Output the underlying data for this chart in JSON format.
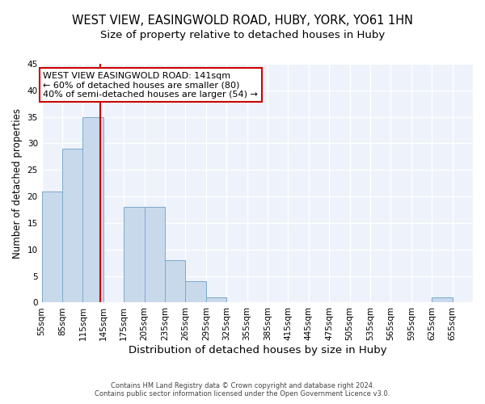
{
  "title1": "WEST VIEW, EASINGWOLD ROAD, HUBY, YORK, YO61 1HN",
  "title2": "Size of property relative to detached houses in Huby",
  "xlabel": "Distribution of detached houses by size in Huby",
  "ylabel": "Number of detached properties",
  "bar_color": "#c9d9ec",
  "bar_edge_color": "#7aaacb",
  "bin_starts": [
    55,
    85,
    115,
    145,
    175,
    205,
    235,
    265,
    295,
    325,
    355,
    385,
    415,
    445,
    475,
    505,
    535,
    565,
    595,
    625,
    655
  ],
  "bin_width": 30,
  "values": [
    21,
    29,
    35,
    0,
    18,
    18,
    8,
    4,
    1,
    0,
    0,
    0,
    0,
    0,
    0,
    0,
    0,
    0,
    0,
    1,
    0
  ],
  "property_size": 141,
  "vline_color": "#cc0000",
  "annotation_line1": "WEST VIEW EASINGWOLD ROAD: 141sqm",
  "annotation_line2": "← 60% of detached houses are smaller (80)",
  "annotation_line3": "40% of semi-detached houses are larger (54) →",
  "annotation_box_color": "white",
  "annotation_box_edge": "#cc0000",
  "footer1": "Contains HM Land Registry data © Crown copyright and database right 2024.",
  "footer2": "Contains public sector information licensed under the Open Government Licence v3.0.",
  "ylim": [
    0,
    45
  ],
  "yticks": [
    0,
    5,
    10,
    15,
    20,
    25,
    30,
    35,
    40,
    45
  ],
  "bg_color": "#eef2fa",
  "grid_color": "white",
  "title1_fontsize": 10.5,
  "title2_fontsize": 9.5,
  "tick_labelsize": 7.5,
  "ylabel_fontsize": 8.5,
  "xlabel_fontsize": 9.5,
  "annotation_fontsize": 8.0,
  "footer_fontsize": 6.0
}
